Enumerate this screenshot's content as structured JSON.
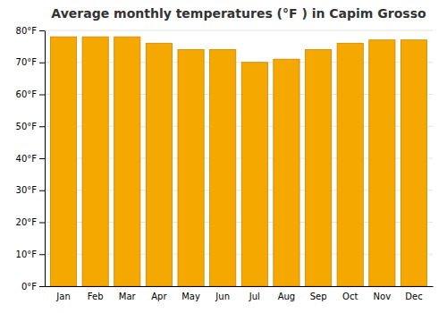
{
  "chart_data": {
    "type": "bar",
    "title": "Average monthly temperatures (°F ) in Capim Grosso",
    "categories": [
      "Jan",
      "Feb",
      "Mar",
      "Apr",
      "May",
      "Jun",
      "Jul",
      "Aug",
      "Sep",
      "Oct",
      "Nov",
      "Dec"
    ],
    "values": [
      78,
      78,
      78,
      76,
      74,
      74,
      70,
      71,
      74,
      76,
      77,
      77
    ],
    "color": "#F5A800",
    "ylim": [
      0,
      80
    ],
    "yticks": [
      {
        "value": 0,
        "label": "0°F"
      },
      {
        "value": 10,
        "label": "10°F"
      },
      {
        "value": 20,
        "label": "20°F"
      },
      {
        "value": 30,
        "label": "30°F"
      },
      {
        "value": 40,
        "label": "40°F"
      },
      {
        "value": 50,
        "label": "50°F"
      },
      {
        "value": 60,
        "label": "60°F"
      },
      {
        "value": 70,
        "label": "70°F"
      },
      {
        "value": 80,
        "label": "80°F"
      }
    ],
    "grid": true
  }
}
